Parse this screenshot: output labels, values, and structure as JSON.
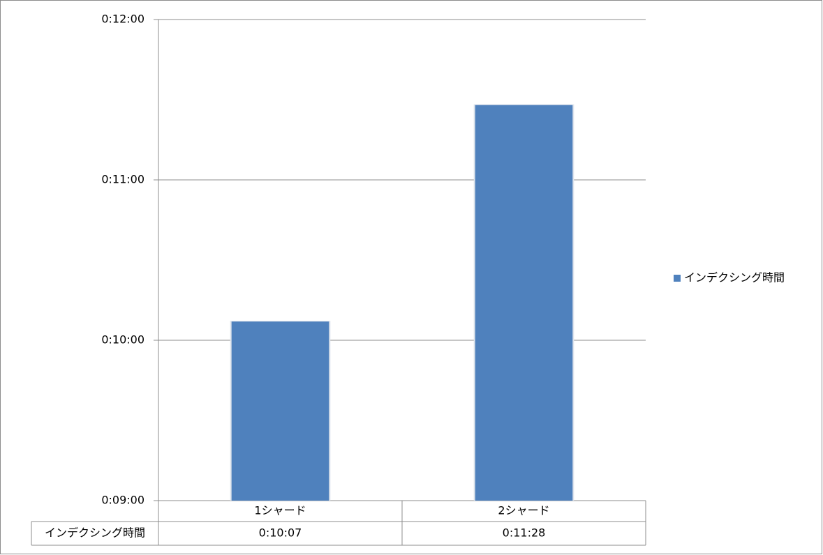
{
  "chart_data": {
    "type": "bar",
    "categories": [
      "1シャード",
      "2シャード"
    ],
    "series": [
      {
        "name": "インデクシング時間",
        "color": "#4f81bd",
        "values": [
          607,
          688
        ],
        "value_labels": [
          "0:10:07",
          "0:11:28"
        ]
      }
    ],
    "ylim": [
      540,
      720
    ],
    "yticks": [
      {
        "value": 540,
        "label": "0:09:00"
      },
      {
        "value": 600,
        "label": "0:10:00"
      },
      {
        "value": 660,
        "label": "0:11:00"
      },
      {
        "value": 720,
        "label": "0:12:00"
      }
    ],
    "grid": true,
    "legend": "right",
    "data_table": true
  }
}
